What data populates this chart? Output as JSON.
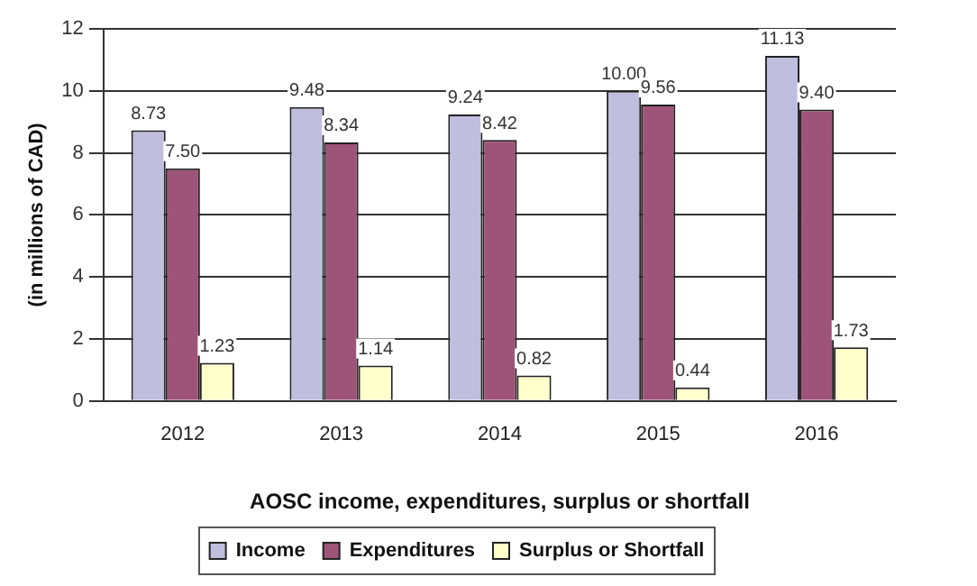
{
  "chart_data": {
    "type": "bar",
    "xlabel": "AOSC income, expenditures, surplus or shortfall",
    "ylabel": "(in millions of CAD)",
    "categories": [
      "2012",
      "2013",
      "2014",
      "2015",
      "2016"
    ],
    "series": [
      {
        "name": "Income",
        "color": "#c0bedf",
        "values": [
          8.73,
          9.48,
          9.24,
          10.0,
          11.13
        ],
        "value_labels": [
          "8.73",
          "9.48",
          "9.24",
          "10.00",
          "11.13"
        ]
      },
      {
        "name": "Expenditures",
        "color": "#9e5478",
        "values": [
          7.5,
          8.34,
          8.42,
          9.56,
          9.4
        ],
        "value_labels": [
          "7.50",
          "8.34",
          "8.42",
          "9.56",
          "9.40"
        ]
      },
      {
        "name": "Surplus or Shortfall",
        "color": "#ffffcc",
        "values": [
          1.23,
          1.14,
          0.82,
          0.44,
          1.73
        ],
        "value_labels": [
          "1.23",
          "1.14",
          "0.82",
          "0.44",
          "1.73"
        ]
      }
    ],
    "ylim": [
      0,
      12
    ],
    "yticks": [
      0,
      2,
      4,
      6,
      8,
      10,
      12
    ],
    "grid": "y",
    "legend": "bottom"
  }
}
